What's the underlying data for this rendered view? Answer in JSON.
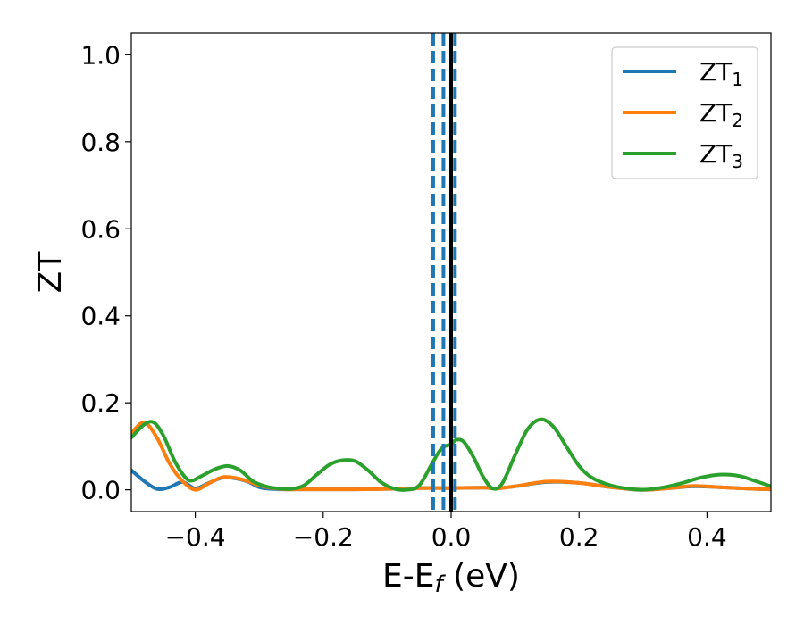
{
  "chart_data": {
    "type": "line",
    "title": "",
    "xlabel": "E-E",
    "xlabel_subscript": "f",
    "xlabel_unit": " (eV)",
    "ylabel": "ZT",
    "xlim": [
      -0.5,
      0.5
    ],
    "ylim": [
      -0.05,
      1.05
    ],
    "xticks": [
      -0.4,
      -0.2,
      0.0,
      0.2,
      0.4
    ],
    "xtick_labels": [
      "−0.4",
      "−0.2",
      "0.0",
      "0.2",
      "0.4"
    ],
    "yticks": [
      0.0,
      0.2,
      0.4,
      0.6,
      0.8,
      1.0
    ],
    "ytick_labels": [
      "0.0",
      "0.2",
      "0.4",
      "0.6",
      "0.8",
      "1.0"
    ],
    "grid": false,
    "legend_position": "top-right",
    "vertical_lines": [
      {
        "x": -0.028,
        "style": "dashed",
        "color": "#1f77b4"
      },
      {
        "x": -0.012,
        "style": "dashed",
        "color": "#1f77b4"
      },
      {
        "x": 0.006,
        "style": "dashed",
        "color": "#1f77b4"
      },
      {
        "x": 0.0,
        "style": "solid",
        "color": "#000000"
      }
    ],
    "series": [
      {
        "name": "ZT",
        "name_subscript": "1",
        "color": "#1f77b4",
        "x": [
          -0.5,
          -0.48,
          -0.46,
          -0.44,
          -0.42,
          -0.4,
          -0.38,
          -0.36,
          -0.345,
          -0.32,
          -0.3,
          -0.28,
          -0.26,
          -0.24,
          -0.2,
          -0.15,
          -0.1,
          -0.05,
          0.0,
          0.05,
          0.07,
          0.1,
          0.15,
          0.2,
          0.25,
          0.3,
          0.35,
          0.38,
          0.42,
          0.46,
          0.5
        ],
        "y": [
          0.045,
          0.02,
          0.002,
          0.006,
          0.018,
          0.003,
          0.015,
          0.027,
          0.028,
          0.02,
          0.006,
          0.002,
          0.001,
          0.001,
          0.001,
          0.001,
          0.002,
          0.004,
          0.004,
          0.005,
          0.003,
          0.008,
          0.018,
          0.016,
          0.006,
          0.0,
          0.005,
          0.008,
          0.006,
          0.003,
          0.001
        ]
      },
      {
        "name": "ZT",
        "name_subscript": "2",
        "color": "#ff7f0e",
        "x": [
          -0.5,
          -0.48,
          -0.46,
          -0.44,
          -0.42,
          -0.4,
          -0.38,
          -0.36,
          -0.345,
          -0.32,
          -0.3,
          -0.28,
          -0.26,
          -0.24,
          -0.2,
          -0.15,
          -0.1,
          -0.05,
          0.0,
          0.05,
          0.07,
          0.1,
          0.15,
          0.2,
          0.25,
          0.3,
          0.35,
          0.38,
          0.42,
          0.46,
          0.5
        ],
        "y": [
          0.13,
          0.155,
          0.12,
          0.06,
          0.02,
          0.0,
          0.014,
          0.028,
          0.029,
          0.021,
          0.01,
          0.004,
          0.001,
          0.001,
          0.001,
          0.001,
          0.002,
          0.004,
          0.004,
          0.005,
          0.003,
          0.008,
          0.019,
          0.016,
          0.006,
          0.0,
          0.005,
          0.009,
          0.006,
          0.003,
          0.001
        ]
      },
      {
        "name": "ZT",
        "name_subscript": "3",
        "color": "#2ca02c",
        "x": [
          -0.5,
          -0.48,
          -0.465,
          -0.45,
          -0.43,
          -0.41,
          -0.39,
          -0.37,
          -0.35,
          -0.33,
          -0.31,
          -0.29,
          -0.27,
          -0.25,
          -0.23,
          -0.21,
          -0.19,
          -0.17,
          -0.15,
          -0.13,
          -0.11,
          -0.09,
          -0.07,
          -0.05,
          -0.03,
          -0.015,
          0.0,
          0.008,
          0.02,
          0.035,
          0.05,
          0.065,
          0.08,
          0.1,
          0.12,
          0.14,
          0.16,
          0.18,
          0.2,
          0.22,
          0.25,
          0.28,
          0.3,
          0.33,
          0.36,
          0.39,
          0.42,
          0.45,
          0.48,
          0.5
        ],
        "y": [
          0.12,
          0.15,
          0.155,
          0.125,
          0.06,
          0.022,
          0.032,
          0.047,
          0.055,
          0.045,
          0.02,
          0.008,
          0.003,
          0.002,
          0.01,
          0.035,
          0.058,
          0.068,
          0.066,
          0.045,
          0.018,
          0.003,
          0.0,
          0.01,
          0.06,
          0.095,
          0.105,
          0.115,
          0.11,
          0.075,
          0.03,
          0.003,
          0.015,
          0.08,
          0.14,
          0.162,
          0.145,
          0.1,
          0.055,
          0.028,
          0.01,
          0.002,
          0.0,
          0.005,
          0.015,
          0.028,
          0.035,
          0.032,
          0.018,
          0.008
        ]
      }
    ]
  }
}
